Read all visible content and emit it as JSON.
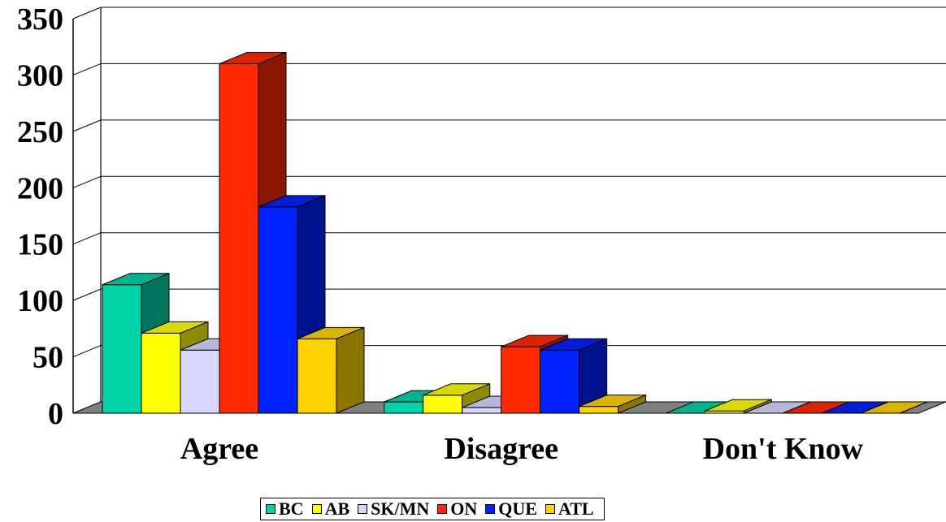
{
  "chart_data": {
    "type": "bar",
    "title": "",
    "xlabel": "",
    "ylabel": "",
    "categories": [
      "Agree",
      "Disagree",
      "Don't Know"
    ],
    "ylim": [
      0,
      350
    ],
    "yticks": [
      "0",
      "50",
      "100",
      "150",
      "200",
      "250",
      "300",
      "350"
    ],
    "grid": true,
    "three_d": true,
    "legend_position": "bottom",
    "series": [
      {
        "name": "BC",
        "values": [
          114,
          10,
          0
        ],
        "color": "#00d3a7"
      },
      {
        "name": "AB",
        "values": [
          71,
          16,
          2
        ],
        "color": "#ffff00"
      },
      {
        "name": "SK/MN",
        "values": [
          56,
          5,
          0
        ],
        "color": "#d6d6ff"
      },
      {
        "name": "ON",
        "values": [
          310,
          59,
          0
        ],
        "color": "#ff2a00"
      },
      {
        "name": "QUE",
        "values": [
          183,
          56,
          0
        ],
        "color": "#0022ff"
      },
      {
        "name": "ATL",
        "values": [
          66,
          6,
          0
        ],
        "color": "#ffd200"
      }
    ]
  }
}
